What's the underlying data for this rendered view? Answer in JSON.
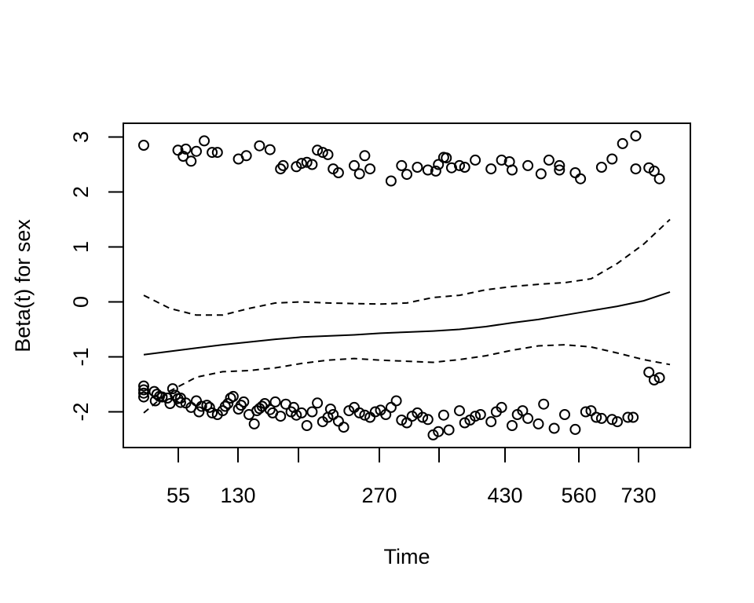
{
  "chart_data": {
    "type": "scatter",
    "xlabel": "Time",
    "ylabel": "Beta(t) for sex",
    "x_tick_labels": [
      "55",
      "130",
      "270",
      "430",
      "560",
      "730"
    ],
    "x_unlabeled_tick_count": 2,
    "y_ticks": [
      -2,
      -1,
      0,
      1,
      2,
      3
    ],
    "ylim": [
      -2.65,
      3.25
    ],
    "grid": false,
    "series": [
      {
        "type": "line",
        "style": "solid",
        "x": [
          0.0,
          0.05,
          0.1,
          0.15,
          0.2,
          0.25,
          0.3,
          0.35,
          0.4,
          0.45,
          0.5,
          0.55,
          0.6,
          0.65,
          0.7,
          0.75,
          0.8,
          0.85,
          0.9,
          0.95,
          1.0
        ],
        "values": [
          -0.96,
          -0.9,
          -0.84,
          -0.78,
          -0.73,
          -0.68,
          -0.64,
          -0.62,
          -0.6,
          -0.57,
          -0.55,
          -0.53,
          -0.5,
          -0.45,
          -0.38,
          -0.32,
          -0.24,
          -0.16,
          -0.08,
          0.02,
          0.18
        ]
      },
      {
        "type": "line",
        "style": "dashed",
        "x": [
          0.0,
          0.05,
          0.1,
          0.15,
          0.2,
          0.25,
          0.3,
          0.35,
          0.4,
          0.45,
          0.5,
          0.55,
          0.6,
          0.65,
          0.7,
          0.75,
          0.8,
          0.85,
          0.9,
          0.95,
          1.0
        ],
        "values": [
          0.12,
          -0.12,
          -0.24,
          -0.24,
          -0.12,
          -0.02,
          0.0,
          -0.02,
          -0.03,
          -0.04,
          -0.02,
          0.08,
          0.12,
          0.22,
          0.28,
          0.32,
          0.35,
          0.42,
          0.7,
          1.05,
          1.5
        ]
      },
      {
        "type": "line",
        "style": "dashed",
        "x": [
          0.0,
          0.05,
          0.1,
          0.15,
          0.2,
          0.25,
          0.3,
          0.35,
          0.4,
          0.45,
          0.5,
          0.55,
          0.6,
          0.65,
          0.7,
          0.75,
          0.8,
          0.85,
          0.9,
          0.95,
          1.0
        ],
        "values": [
          -2.02,
          -1.62,
          -1.37,
          -1.27,
          -1.25,
          -1.2,
          -1.12,
          -1.06,
          -1.03,
          -1.06,
          -1.08,
          -1.1,
          -1.05,
          -0.98,
          -0.88,
          -0.8,
          -0.78,
          -0.82,
          -0.93,
          -1.05,
          -1.14
        ]
      },
      {
        "type": "scatter",
        "x": [
          0.0,
          0.0,
          0.0,
          0.0,
          0.02,
          0.022,
          0.025,
          0.03,
          0.035,
          0.045,
          0.05,
          0.055,
          0.06,
          0.065,
          0.07,
          0.07,
          0.08,
          0.09,
          0.1,
          0.105,
          0.11,
          0.12,
          0.125,
          0.13,
          0.14,
          0.15,
          0.155,
          0.16,
          0.165,
          0.17,
          0.18,
          0.185,
          0.19,
          0.2,
          0.21,
          0.215,
          0.22,
          0.225,
          0.23,
          0.24,
          0.245,
          0.25,
          0.26,
          0.27,
          0.28,
          0.285,
          0.29,
          0.3,
          0.31,
          0.32,
          0.33,
          0.34,
          0.35,
          0.355,
          0.36,
          0.37,
          0.38,
          0.39,
          0.4,
          0.41,
          0.42,
          0.43,
          0.44,
          0.45,
          0.46,
          0.47,
          0.48,
          0.49,
          0.5,
          0.51,
          0.52,
          0.53,
          0.54,
          0.55,
          0.56,
          0.57,
          0.58,
          0.6,
          0.61,
          0.62,
          0.63,
          0.64,
          0.66,
          0.67,
          0.68,
          0.7,
          0.71,
          0.72,
          0.73,
          0.75,
          0.76,
          0.78,
          0.8,
          0.82,
          0.84,
          0.85,
          0.86,
          0.87,
          0.89,
          0.9,
          0.92,
          0.93,
          0.96,
          0.97,
          0.98
        ],
        "values": [
          -1.53,
          -1.6,
          -1.66,
          -1.73,
          -1.63,
          -1.8,
          -1.68,
          -1.72,
          -1.73,
          -1.75,
          -1.85,
          -1.58,
          -1.7,
          -1.76,
          -1.83,
          -1.75,
          -1.84,
          -1.92,
          -1.8,
          -2.0,
          -1.9,
          -1.88,
          -1.92,
          -2.02,
          -2.05,
          -1.98,
          -1.9,
          -1.85,
          -1.75,
          -1.72,
          -1.95,
          -1.88,
          -1.82,
          -2.05,
          -2.22,
          -1.98,
          -1.94,
          -1.9,
          -1.85,
          -1.96,
          -2.02,
          -1.82,
          -2.08,
          -1.86,
          -2.0,
          -1.92,
          -2.06,
          -2.02,
          -2.25,
          -2.0,
          -1.84,
          -2.18,
          -2.1,
          -1.95,
          -2.05,
          -2.17,
          -2.28,
          -1.98,
          -1.92,
          -2.02,
          -2.06,
          -2.1,
          -2.0,
          -1.97,
          -2.05,
          -1.92,
          -1.8,
          -2.15,
          -2.2,
          -2.08,
          -2.02,
          -2.1,
          -2.14,
          -2.42,
          -2.36,
          -2.06,
          -2.33,
          -1.98,
          -2.2,
          -2.15,
          -2.08,
          -2.05,
          -2.18,
          -2.0,
          -1.92,
          -2.25,
          -2.05,
          -1.98,
          -2.12,
          -2.22,
          -1.86,
          -2.3,
          -2.05,
          -2.32,
          -2.0,
          -1.98,
          -2.1,
          -2.12,
          -2.14,
          -2.18,
          -2.1,
          -2.1,
          -1.28,
          -1.42,
          -1.38
        ]
      },
      {
        "type": "scatter",
        "x": [
          0.0,
          0.065,
          0.075,
          0.08,
          0.09,
          0.1,
          0.115,
          0.13,
          0.14,
          0.18,
          0.195,
          0.22,
          0.24,
          0.26,
          0.265,
          0.29,
          0.3,
          0.31,
          0.32,
          0.33,
          0.34,
          0.35,
          0.36,
          0.37,
          0.4,
          0.41,
          0.42,
          0.43,
          0.47,
          0.49,
          0.5,
          0.52,
          0.54,
          0.555,
          0.56,
          0.57,
          0.575,
          0.585,
          0.6,
          0.61,
          0.63,
          0.66,
          0.68,
          0.695,
          0.7,
          0.73,
          0.755,
          0.77,
          0.79,
          0.79,
          0.82,
          0.83,
          0.87,
          0.89,
          0.91,
          0.935,
          0.935,
          0.96,
          0.97,
          0.98
        ],
        "values": [
          2.85,
          2.76,
          2.65,
          2.78,
          2.56,
          2.74,
          2.93,
          2.72,
          2.72,
          2.6,
          2.66,
          2.84,
          2.77,
          2.42,
          2.48,
          2.46,
          2.52,
          2.54,
          2.5,
          2.76,
          2.72,
          2.68,
          2.42,
          2.35,
          2.48,
          2.33,
          2.66,
          2.42,
          2.2,
          2.48,
          2.32,
          2.45,
          2.4,
          2.38,
          2.5,
          2.63,
          2.62,
          2.44,
          2.48,
          2.45,
          2.58,
          2.42,
          2.58,
          2.55,
          2.4,
          2.48,
          2.33,
          2.58,
          2.4,
          2.48,
          2.35,
          2.24,
          2.45,
          2.6,
          2.88,
          3.02,
          2.42,
          2.44,
          2.38,
          2.24
        ]
      }
    ]
  }
}
